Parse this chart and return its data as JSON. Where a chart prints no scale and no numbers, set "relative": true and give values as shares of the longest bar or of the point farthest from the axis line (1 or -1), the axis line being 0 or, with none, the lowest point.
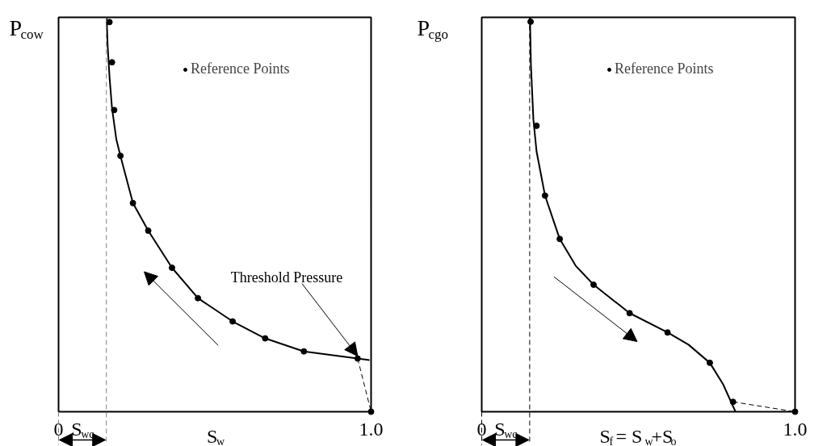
{
  "chart_data": [
    {
      "type": "line",
      "ylabel": "P$_{cow}$",
      "xlabel": "S$_{w}$",
      "relative": true,
      "xlim": [
        0,
        1
      ],
      "xticks": [
        0,
        {
          "value": 1,
          "label": "1.0"
        }
      ],
      "tick_labels": "x",
      "grid": false,
      "legend": "top right",
      "series": [
        {
          "type": "line",
          "color": "#000000",
          "line_style": "solid",
          "marker": "none",
          "x": [
            0.154,
            0.157,
            0.163,
            0.171,
            0.185,
            0.198,
            0.238,
            0.287,
            0.363,
            0.446,
            0.557,
            0.661,
            0.785,
            0.957,
            0.995
          ],
          "values": [
            1.0,
            0.93,
            0.85,
            0.77,
            0.69,
            0.649,
            0.529,
            0.459,
            0.365,
            0.288,
            0.229,
            0.186,
            0.153,
            0.135,
            0.131
          ]
        },
        {
          "type": "line",
          "color": "#000000",
          "line_style": "dashed",
          "marker": "none",
          "x": [
            0.957,
            1.0
          ],
          "values": [
            0.135,
            0
          ]
        },
        {
          "type": "scatter",
          "name": "Reference Points",
          "color": "#000000",
          "marker": "circle",
          "x": [
            0.163,
            0.171,
            0.178,
            0.198,
            0.238,
            0.287,
            0.363,
            0.446,
            0.557,
            0.661,
            0.785,
            0.957,
            1.0
          ],
          "values": [
            0.988,
            0.886,
            0.765,
            0.649,
            0.529,
            0.459,
            0.365,
            0.288,
            0.229,
            0.186,
            0.153,
            0.135,
            0
          ]
        }
      ],
      "ref_lines": [
        {
          "axis": "x",
          "value": 0.153,
          "label": "S$_{wc}$",
          "line_style": "dashed",
          "color": "#808080"
        }
      ],
      "annotations": [
        {
          "text": "Threshold Pressure",
          "x": 0.957,
          "y": 0.135
        }
      ]
    },
    {
      "type": "line",
      "ylabel": "P$_{cgo}$",
      "xlabel": "S$_{f}$= S$_{w}$+S$_{o}$",
      "relative": true,
      "xlim": [
        0,
        1
      ],
      "xticks": [
        0,
        {
          "value": 1,
          "label": "1.0"
        }
      ],
      "tick_labels": "x",
      "grid": false,
      "legend": "top right",
      "series": [
        {
          "type": "line",
          "color": "#000000",
          "line_style": "solid",
          "marker": "none",
          "x": [
            0.154,
            0.157,
            0.165,
            0.175,
            0.202,
            0.249,
            0.3,
            0.357,
            0.472,
            0.593,
            0.66,
            0.728,
            0.77,
            0.81
          ],
          "values": [
            1.0,
            0.88,
            0.74,
            0.66,
            0.548,
            0.438,
            0.37,
            0.322,
            0.25,
            0.201,
            0.17,
            0.124,
            0.07,
            0
          ]
        },
        {
          "type": "line",
          "color": "#000000",
          "line_style": "dashed",
          "marker": "none",
          "x": [
            0.802,
            1.0
          ],
          "values": [
            0.025,
            0
          ]
        },
        {
          "type": "scatter",
          "name": "Reference Points",
          "color": "#000000",
          "marker": "circle",
          "x": [
            0.156,
            0.175,
            0.202,
            0.249,
            0.357,
            0.472,
            0.593,
            0.728,
            0.802,
            1.0
          ],
          "values": [
            0.989,
            0.725,
            0.548,
            0.438,
            0.322,
            0.25,
            0.201,
            0.124,
            0.025,
            0
          ]
        }
      ],
      "ref_lines": [
        {
          "axis": "x",
          "value": 0.153,
          "label": "S$_{wc}$",
          "line_style": "dashed",
          "color": "#000000"
        }
      ]
    }
  ]
}
